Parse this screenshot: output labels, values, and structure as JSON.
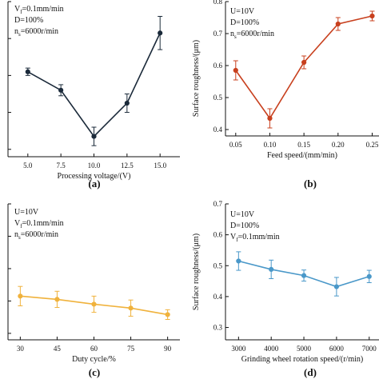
{
  "chart_data": [
    {
      "type": "line",
      "panel_label": "(a)",
      "color": "#1b2a3a",
      "title": "",
      "xlabel": "Processing voltage/(V)",
      "ylabel": "",
      "x": [
        5.0,
        7.5,
        10.0,
        12.5,
        15.0
      ],
      "x_tick_labels": [
        "5.0",
        "7.5",
        "10.0",
        "12.5",
        "15.0"
      ],
      "xlim": [
        3.5,
        16.5
      ],
      "ylim": [
        0.38,
        0.8
      ],
      "series": [
        {
          "values": [
            0.61,
            0.56,
            0.435,
            0.525,
            0.715
          ],
          "errors": [
            0.01,
            0.015,
            0.025,
            0.025,
            0.045
          ]
        }
      ],
      "annotations": [
        {
          "main": "V",
          "sub": "f",
          "rest": "=0.1mm/min"
        },
        {
          "main": "D=100%",
          "sub": "",
          "rest": ""
        },
        {
          "main": "n",
          "sub": "s",
          "rest": "=6000r/min"
        }
      ]
    },
    {
      "type": "line",
      "panel_label": "(b)",
      "color": "#c8401e",
      "title": "",
      "xlabel": "Feed speed/(mm/min)",
      "ylabel": "Surface roughness/(μm)",
      "x": [
        0.05,
        0.1,
        0.15,
        0.2,
        0.25
      ],
      "x_tick_labels": [
        "0.05",
        "0.10",
        "0.15",
        "0.20",
        "0.25"
      ],
      "y_tick_labels": [
        "0.4",
        "0.5",
        "0.6",
        "0.7",
        "0.8"
      ],
      "xlim": [
        0.035,
        0.26
      ],
      "ylim": [
        0.38,
        0.8
      ],
      "series": [
        {
          "values": [
            0.585,
            0.435,
            0.61,
            0.73,
            0.755
          ],
          "errors": [
            0.03,
            0.03,
            0.02,
            0.02,
            0.015
          ]
        }
      ],
      "annotations": [
        {
          "main": "U=10V",
          "sub": "",
          "rest": ""
        },
        {
          "main": "D=100%",
          "sub": "",
          "rest": ""
        },
        {
          "main": "n",
          "sub": "s",
          "rest": "=6000r/min"
        }
      ]
    },
    {
      "type": "line",
      "panel_label": "(c)",
      "color": "#f0b23c",
      "title": "",
      "xlabel": "Duty cycle/%",
      "ylabel": "",
      "x": [
        30,
        45,
        60,
        75,
        90
      ],
      "x_tick_labels": [
        "30",
        "45",
        "60",
        "75",
        "90"
      ],
      "xlim": [
        25,
        95
      ],
      "ylim": [
        0.38,
        0.8
      ],
      "series": [
        {
          "values": [
            0.515,
            0.505,
            0.49,
            0.478,
            0.458
          ],
          "errors": [
            0.03,
            0.025,
            0.025,
            0.025,
            0.015
          ]
        }
      ],
      "annotations": [
        {
          "main": "U=10V",
          "sub": "",
          "rest": ""
        },
        {
          "main": "V",
          "sub": "f",
          "rest": "=0.1mm/min"
        },
        {
          "main": "n",
          "sub": "s",
          "rest": "=6000r/min"
        }
      ]
    },
    {
      "type": "line",
      "panel_label": "(d)",
      "color": "#4a98c9",
      "title": "",
      "xlabel": "Grinding wheel rotation speed/(r/min)",
      "ylabel": "Surface roughness/(μm)",
      "x": [
        3000,
        4000,
        5000,
        6000,
        7000
      ],
      "x_tick_labels": [
        "3000",
        "4000",
        "5000",
        "6000",
        "7000"
      ],
      "y_tick_labels": [
        "0.3",
        "0.4",
        "0.5",
        "0.6",
        "0.7"
      ],
      "xlim": [
        2600,
        7300
      ],
      "ylim": [
        0.26,
        0.7
      ],
      "series": [
        {
          "values": [
            0.515,
            0.488,
            0.468,
            0.432,
            0.465
          ],
          "errors": [
            0.03,
            0.03,
            0.018,
            0.03,
            0.02
          ]
        }
      ],
      "annotations": [
        {
          "main": "U=10V",
          "sub": "",
          "rest": ""
        },
        {
          "main": "D=100%",
          "sub": "",
          "rest": ""
        },
        {
          "main": "V",
          "sub": "f",
          "rest": "=0.1mm/min"
        }
      ]
    }
  ]
}
